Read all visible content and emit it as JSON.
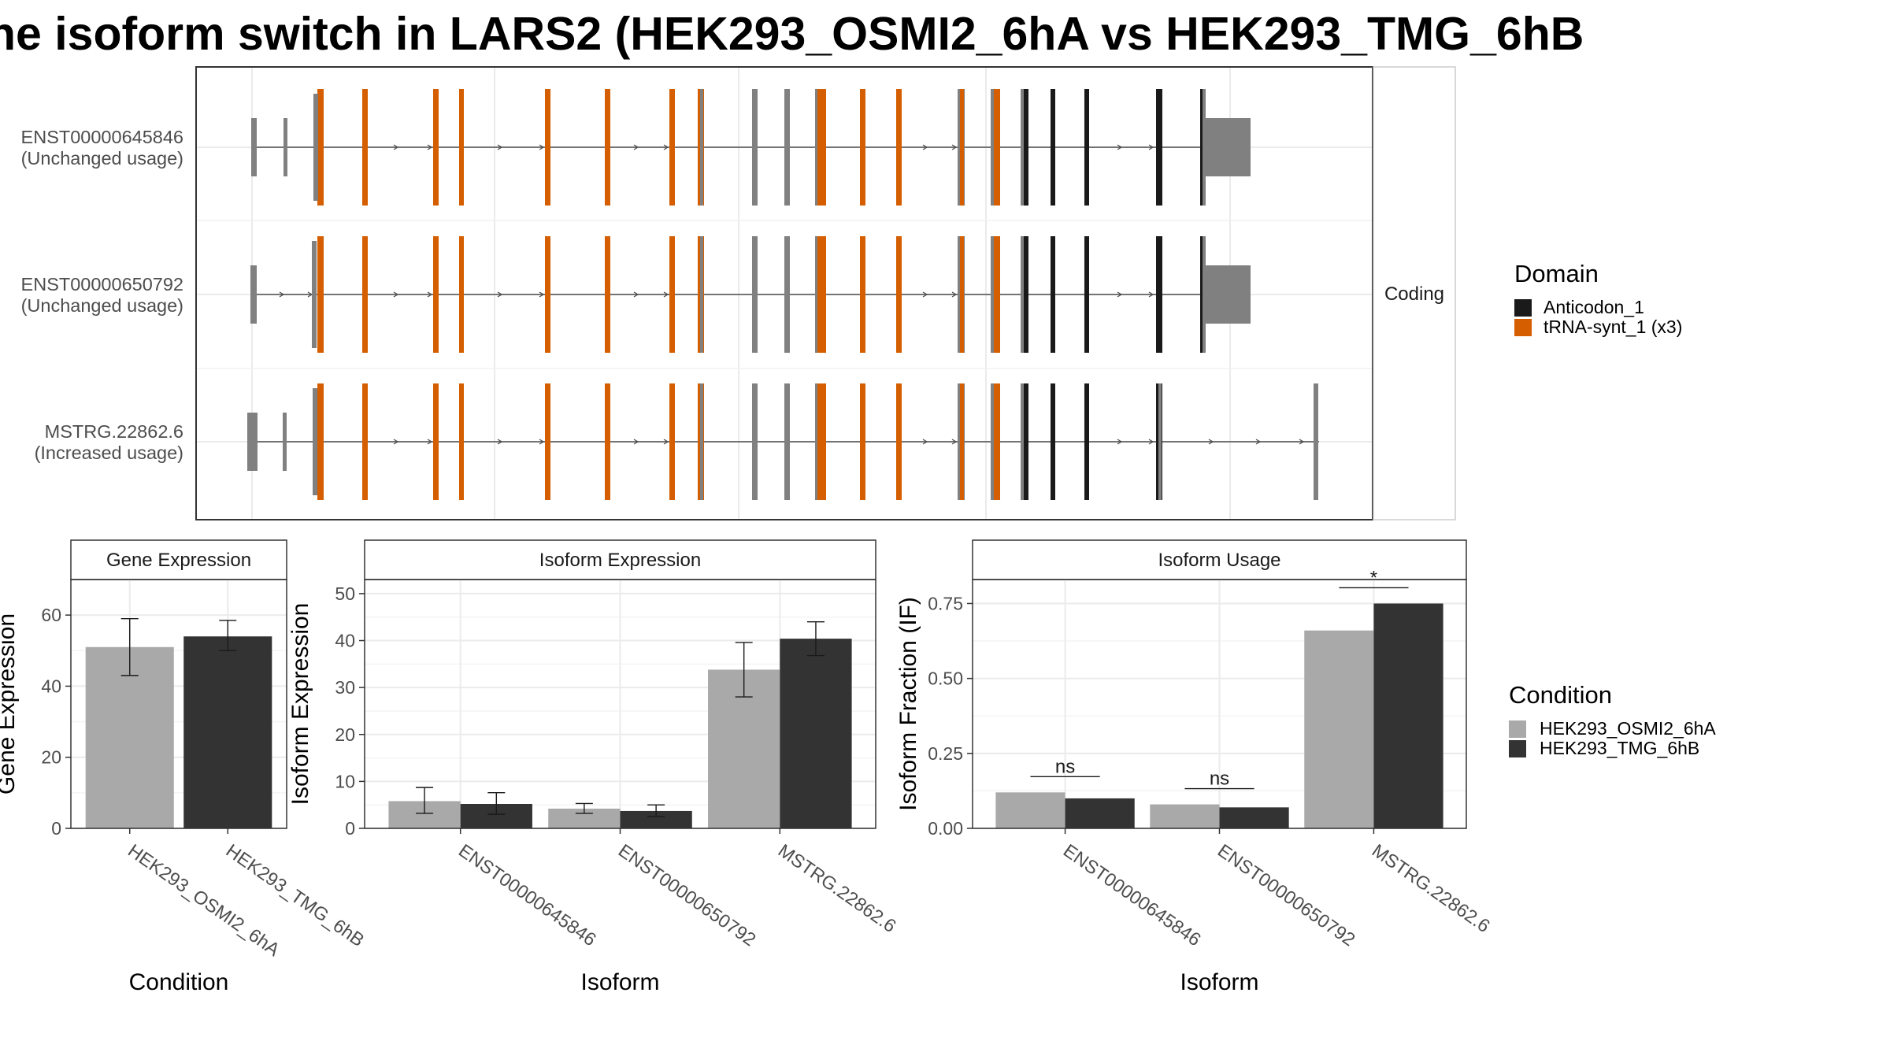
{
  "title": "he isoform switch in LARS2 (HEK293_OSMI2_6hA vs HEK293_TMG_6hB",
  "colors": {
    "anticodon": "#1a1a1a",
    "trna_synt": "#d55e00",
    "noncoding_exon": "#808080",
    "osmi": "#a9a9a9",
    "tmg": "#333333"
  },
  "structure": {
    "facet_label": "Coding",
    "transcripts": [
      {
        "name": "ENST00000645846",
        "usage": "(Unchanged usage)"
      },
      {
        "name": "ENST00000650792",
        "usage": "(Unchanged usage)"
      },
      {
        "name": "MSTRG.22862.6",
        "usage": "(Increased usage)"
      }
    ]
  },
  "legend_domain": {
    "title": "Domain",
    "items": [
      {
        "label": "Anticodon_1",
        "color": "#1a1a1a"
      },
      {
        "label": "tRNA-synt_1 (x3)",
        "color": "#d55e00"
      }
    ]
  },
  "legend_condition": {
    "title": "Condition",
    "items": [
      {
        "label": "HEK293_OSMI2_6hA",
        "color": "#a9a9a9"
      },
      {
        "label": "HEK293_TMG_6hB",
        "color": "#333333"
      }
    ]
  },
  "chart_data": [
    {
      "type": "bar",
      "title": "Gene Expression",
      "xlabel": "Condition",
      "ylabel": "Gene Expression",
      "ylim": [
        0,
        70
      ],
      "yticks": [
        0,
        20,
        40,
        60
      ],
      "categories": [
        "HEK293_OSMI2_6hA",
        "HEK293_TMG_6hB"
      ],
      "values": [
        51,
        54
      ],
      "errors": [
        [
          43,
          59
        ],
        [
          50,
          58.5
        ]
      ],
      "colors": [
        "#a9a9a9",
        "#333333"
      ]
    },
    {
      "type": "bar",
      "title": "Isoform Expression",
      "xlabel": "Isoform",
      "ylabel": "Isoform Expression",
      "ylim": [
        0,
        53
      ],
      "yticks": [
        0,
        10,
        20,
        30,
        40,
        50
      ],
      "categories": [
        "ENST00000645846",
        "ENST00000650792",
        "MSTRG.22862.6"
      ],
      "series": [
        {
          "name": "HEK293_OSMI2_6hA",
          "values": [
            5.8,
            4.2,
            33.8
          ],
          "errors": [
            [
              3.2,
              8.7
            ],
            [
              3.2,
              5.3
            ],
            [
              28.0,
              39.6
            ]
          ]
        },
        {
          "name": "HEK293_TMG_6hB",
          "values": [
            5.2,
            3.7,
            40.4
          ],
          "errors": [
            [
              3.0,
              7.6
            ],
            [
              2.5,
              5.0
            ],
            [
              36.8,
              44.0
            ]
          ]
        }
      ]
    },
    {
      "type": "bar",
      "title": "Isoform Usage",
      "xlabel": "Isoform",
      "ylabel": "Isoform Fraction (IF)",
      "ylim": [
        0,
        0.83
      ],
      "yticks": [
        "0.00",
        "0.25",
        "0.50",
        "0.75"
      ],
      "categories": [
        "ENST00000645846",
        "ENST00000650792",
        "MSTRG.22862.6"
      ],
      "series": [
        {
          "name": "HEK293_OSMI2_6hA",
          "values": [
            0.12,
            0.08,
            0.66
          ]
        },
        {
          "name": "HEK293_TMG_6hB",
          "values": [
            0.1,
            0.07,
            0.75
          ]
        }
      ],
      "significance": [
        "ns",
        "ns",
        "*"
      ]
    }
  ]
}
